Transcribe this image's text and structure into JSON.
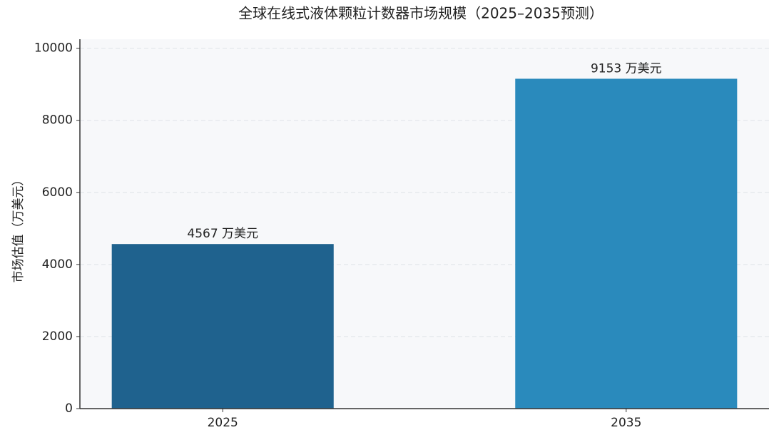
{
  "chart_data": {
    "type": "bar",
    "title": "全球在线式液体颗粒计数器市场规模（2025–2035预测）",
    "y_label": "市场估值（万美元）",
    "categories": [
      "2025",
      "2035"
    ],
    "values": [
      4567,
      9153
    ],
    "value_labels": [
      "4567 万美元",
      "9153 万美元"
    ],
    "colors": [
      "#1f628e",
      "#2a8abc"
    ],
    "ylim": [
      0,
      10250
    ],
    "yticks": [
      0,
      2000,
      4000,
      6000,
      8000,
      10000
    ],
    "grid": true
  }
}
